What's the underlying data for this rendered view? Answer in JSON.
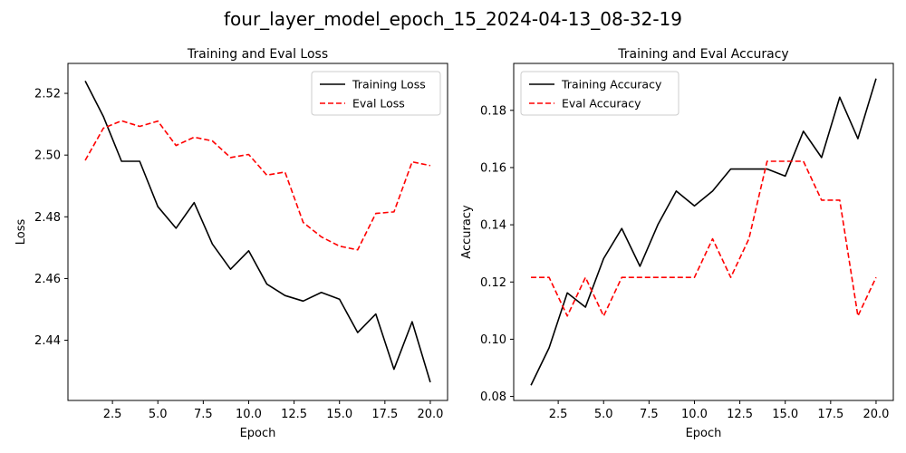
{
  "figure": {
    "suptitle": "four_layer_model_epoch_15_2024-04-13_08-32-19"
  },
  "chart_data": [
    {
      "type": "line",
      "title": "Training and Eval Loss",
      "xlabel": "Epoch",
      "ylabel": "Loss",
      "x": [
        1,
        2,
        3,
        4,
        5,
        6,
        7,
        8,
        9,
        10,
        11,
        12,
        13,
        14,
        15,
        16,
        17,
        18,
        19,
        20
      ],
      "xlim": [
        0.05,
        20.95
      ],
      "ylim": [
        2.4205,
        2.5297
      ],
      "xticks": [
        2.5,
        5.0,
        7.5,
        10.0,
        12.5,
        15.0,
        17.5,
        20.0
      ],
      "xtick_labels": [
        "2.5",
        "5.0",
        "7.5",
        "10.0",
        "12.5",
        "15.0",
        "17.5",
        "20.0"
      ],
      "yticks": [
        2.44,
        2.46,
        2.48,
        2.5,
        2.52
      ],
      "ytick_labels": [
        "2.44",
        "2.46",
        "2.48",
        "2.50",
        "2.52"
      ],
      "legend_position": "upper right",
      "series": [
        {
          "name": "Training Loss",
          "color": "#000000",
          "style": "solid",
          "values": [
            2.524,
            2.5125,
            2.498,
            2.498,
            2.4833,
            2.4763,
            2.4846,
            2.4712,
            2.463,
            2.469,
            2.4582,
            2.4545,
            2.4527,
            2.4555,
            2.4533,
            2.4425,
            2.4485,
            2.4306,
            2.446,
            2.4264
          ]
        },
        {
          "name": "Eval Loss",
          "color": "#ff0000",
          "style": "dashed",
          "values": [
            2.4983,
            2.5087,
            2.5111,
            2.5093,
            2.511,
            2.5031,
            2.5058,
            2.5046,
            2.4992,
            2.5002,
            2.4935,
            2.4945,
            2.4782,
            2.4735,
            2.4705,
            2.4693,
            2.4811,
            2.4816,
            2.4978,
            2.4966
          ]
        }
      ]
    },
    {
      "type": "line",
      "title": "Training and Eval Accuracy",
      "xlabel": "Epoch",
      "ylabel": "Accuracy",
      "x": [
        1,
        2,
        3,
        4,
        5,
        6,
        7,
        8,
        9,
        10,
        11,
        12,
        13,
        14,
        15,
        16,
        17,
        18,
        19,
        20
      ],
      "xlim": [
        0.05,
        20.95
      ],
      "ylim": [
        0.0786,
        0.1964
      ],
      "xticks": [
        2.5,
        5.0,
        7.5,
        10.0,
        12.5,
        15.0,
        17.5,
        20.0
      ],
      "xtick_labels": [
        "2.5",
        "5.0",
        "7.5",
        "10.0",
        "12.5",
        "15.0",
        "17.5",
        "20.0"
      ],
      "yticks": [
        0.08,
        0.1,
        0.12,
        0.14,
        0.16,
        0.18
      ],
      "ytick_labels": [
        "0.08",
        "0.10",
        "0.12",
        "0.14",
        "0.16",
        "0.18"
      ],
      "legend_position": "upper left",
      "series": [
        {
          "name": "Training Accuracy",
          "color": "#000000",
          "style": "solid",
          "values": [
            0.0839,
            0.097,
            0.1162,
            0.1112,
            0.1282,
            0.1387,
            0.1255,
            0.1402,
            0.1518,
            0.1466,
            0.1518,
            0.1595,
            0.1595,
            0.1595,
            0.157,
            0.1727,
            0.1635,
            0.1846,
            0.1701,
            0.1911
          ]
        },
        {
          "name": "Eval Accuracy",
          "color": "#ff0000",
          "style": "dashed",
          "values": [
            0.1216,
            0.1216,
            0.1081,
            0.1216,
            0.1081,
            0.1216,
            0.1216,
            0.1216,
            0.1216,
            0.1216,
            0.1351,
            0.1216,
            0.1351,
            0.1622,
            0.1622,
            0.1622,
            0.1486,
            0.1486,
            0.1081,
            0.1216
          ]
        }
      ]
    }
  ]
}
